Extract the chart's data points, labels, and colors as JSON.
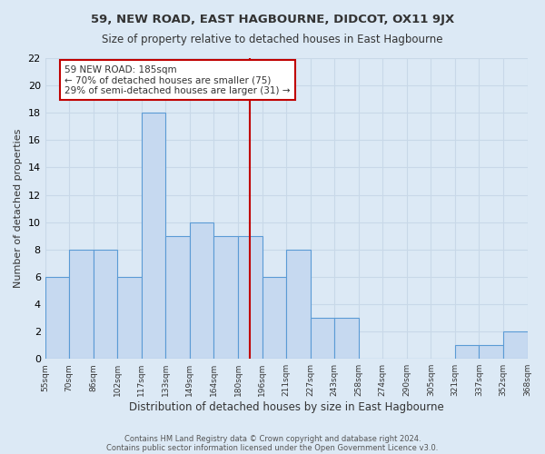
{
  "title": "59, NEW ROAD, EAST HAGBOURNE, DIDCOT, OX11 9JX",
  "subtitle": "Size of property relative to detached houses in East Hagbourne",
  "xlabel": "Distribution of detached houses by size in East Hagbourne",
  "ylabel": "Number of detached properties",
  "bin_labels": [
    "55sqm",
    "70sqm",
    "86sqm",
    "102sqm",
    "117sqm",
    "133sqm",
    "149sqm",
    "164sqm",
    "180sqm",
    "196sqm",
    "211sqm",
    "227sqm",
    "243sqm",
    "258sqm",
    "274sqm",
    "290sqm",
    "305sqm",
    "321sqm",
    "337sqm",
    "352sqm",
    "368sqm"
  ],
  "bar_values": [
    6,
    8,
    8,
    6,
    18,
    9,
    10,
    9,
    9,
    6,
    8,
    3,
    3,
    0,
    0,
    0,
    0,
    1,
    1,
    2
  ],
  "bar_color": "#c6d9f0",
  "bar_edge_color": "#5b9bd5",
  "bar_linewidth": 0.8,
  "vline_x": 8.5,
  "vline_color": "#c00000",
  "annotation_title": "59 NEW ROAD: 185sqm",
  "annotation_line1": "← 70% of detached houses are smaller (75)",
  "annotation_line2": "29% of semi-detached houses are larger (31) →",
  "annotation_box_color": "#c00000",
  "annotation_bg": "#ffffff",
  "ylim": [
    0,
    22
  ],
  "yticks": [
    0,
    2,
    4,
    6,
    8,
    10,
    12,
    14,
    16,
    18,
    20,
    22
  ],
  "grid_color": "#c8d8e8",
  "bg_color": "#dce9f5",
  "footer1": "Contains HM Land Registry data © Crown copyright and database right 2024.",
  "footer2": "Contains public sector information licensed under the Open Government Licence v3.0."
}
